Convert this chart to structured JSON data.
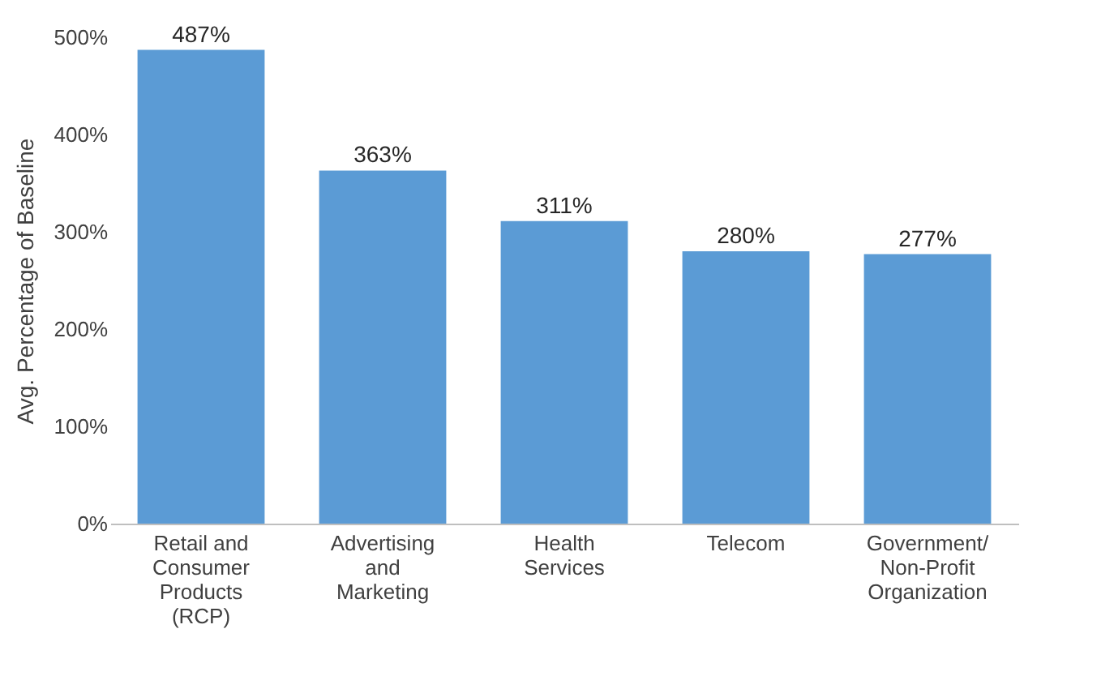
{
  "chart_data": {
    "type": "bar",
    "ylabel": "Avg. Percentage of Baseline",
    "categories": [
      "Retail and Consumer Products (RCP)",
      "Advertising and Marketing",
      "Health Services",
      "Telecom",
      "Government/Non-Profit Organization"
    ],
    "values": [
      487,
      363,
      311,
      280,
      277
    ],
    "value_labels": [
      "487%",
      "363%",
      "311%",
      "280%",
      "277%"
    ],
    "color": "#5b9bd5",
    "ylim": [
      0,
      500
    ],
    "yticks": [
      {
        "value": 0,
        "label": "0%"
      },
      {
        "value": 100,
        "label": "100%"
      },
      {
        "value": 200,
        "label": "200%"
      },
      {
        "value": 300,
        "label": "300%"
      },
      {
        "value": 400,
        "label": "400%"
      },
      {
        "value": 500,
        "label": "500%"
      }
    ],
    "grid": false
  }
}
